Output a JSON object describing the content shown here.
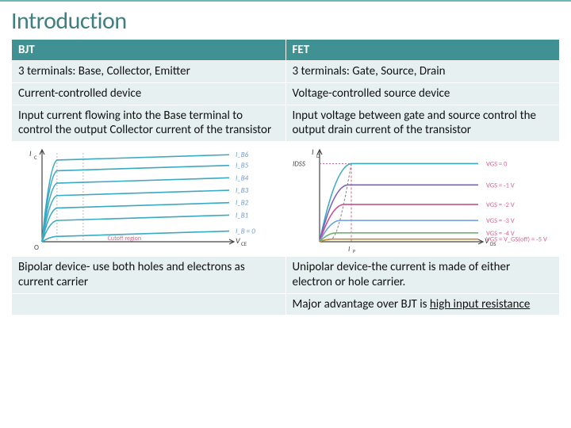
{
  "title": "Introduction",
  "colors": {
    "accent": "#3f9194",
    "accent_light": "#e6f0f1",
    "title_color": "#3f7f80",
    "text": "#111111",
    "bg": "#ffffff"
  },
  "table": {
    "headers": {
      "left": "BJT",
      "right": "FET"
    },
    "rows": [
      {
        "left": "3 terminals: Base, Collector, Emitter",
        "right": "3 terminals: Gate, Source, Drain"
      },
      {
        "left": "Current-controlled device",
        "right": "Voltage-controlled source device"
      },
      {
        "left": "Input current flowing into the Base terminal to control the output Collector current of the transistor",
        "right": "Input voltage between gate and source control the output drain current of the transistor"
      },
      {
        "left": "Bipolar device- use both holes and electrons as current carrier",
        "right": "Unipolar device-the current is made of either electron or hole carrier."
      },
      {
        "left": "",
        "right_prefix": "Major advantage over BJT is ",
        "right_underline": "high input resistance"
      }
    ]
  },
  "bjt_chart": {
    "type": "line",
    "bg": "#ffffff",
    "axis_color": "#444444",
    "grid_color": "#bbbbbb",
    "line_color": "#3aa9c4",
    "cutoff_text_color": "#d06a8c",
    "y_label": "I_C",
    "x_label": "V_CE",
    "ib_labels": [
      "I_B6",
      "I_B5",
      "I_B4",
      "I_B3",
      "I_B2",
      "I_B1",
      "I_B = 0"
    ],
    "ib_label_color": "#6b9bd2",
    "cutoff_label": "Cutoff region",
    "curves_count": 7,
    "xlim": [
      0,
      100
    ],
    "ylim": [
      0,
      100
    ],
    "knee_x": 8,
    "levels": [
      92,
      80,
      66,
      52,
      38,
      24,
      6
    ]
  },
  "fet_chart": {
    "type": "line",
    "bg": "#ffffff",
    "axis_color": "#444444",
    "pinch_line_color": "#888888",
    "dash_color": "#d06a8c",
    "idss_label": "I_DSS",
    "ip_label": "I_P",
    "y_label": "I_D",
    "x_label": "V_DS",
    "curve_labels": [
      {
        "text": "V_GS = 0",
        "color": "#d06a8c"
      },
      {
        "text": "V_GS = -1 V",
        "color": "#d06a8c"
      },
      {
        "text": "V_GS = -2 V",
        "color": "#d06a8c"
      },
      {
        "text": "V_GS = -3 V",
        "color": "#d06a8c"
      },
      {
        "text": "V_GS = -4 V",
        "color": "#d06a8c"
      },
      {
        "text": "V_GS = V_GS(off) = -5 V",
        "color": "#d06a8c"
      }
    ],
    "curve_colors": [
      "#3aa9c4",
      "#7a5fbf",
      "#c94f8e",
      "#6a9de0",
      "#6fb36f",
      "#c7882f"
    ],
    "xlim": [
      0,
      100
    ],
    "ylim": [
      0,
      100
    ],
    "knee_x": 20,
    "levels": [
      88,
      64,
      42,
      24,
      10,
      3
    ]
  }
}
